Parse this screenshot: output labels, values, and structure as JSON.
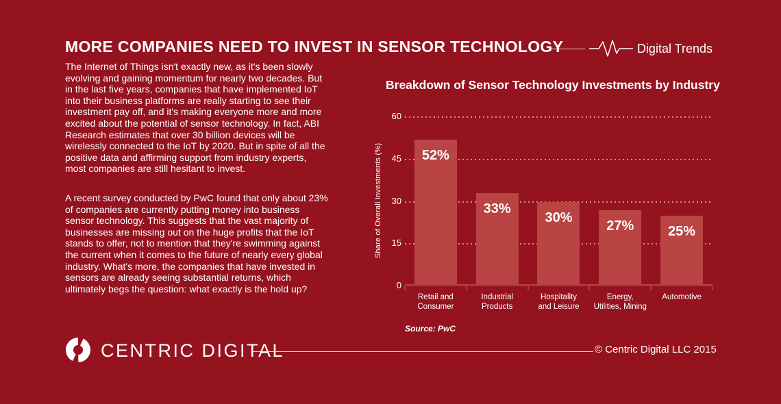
{
  "header": {
    "title": "MORE COMPANIES NEED TO INVEST IN SENSOR TECHNOLOGY",
    "brand_tag": "Digital Trends"
  },
  "article": {
    "paragraphs": [
      "The Internet of Things isn't exactly new, as it's been slowly evolving and gaining momentum for nearly two decades. But in the last five years, companies that have implemented IoT into their business platforms are really starting to see their investment pay off, and it's making everyone more and more excited about the potential of sensor technology. In fact, ABI Research estimates that over 30 billion devices will be wirelessly connected to the IoT by 2020. But in spite of all the positive data and affirming support from industry experts, most companies are still hesitant to invest.",
      "A recent survey conducted by PwC found that only about 23% of companies are currently putting money into business sensor technology. This suggests that the vast majority of businesses are missing out on the huge profits that the IoT stands to offer, not to mention that they're swimming against the current when it comes to the future of nearly every global industry. What's more, the companies that have invested in sensors are already seeing substantial returns, which ultimately begs the question: what exactly is the hold up?"
    ]
  },
  "chart_data": {
    "type": "bar",
    "title": "Breakdown of Sensor Technology Investments by Industry",
    "categories": [
      "Retail and Consumer",
      "Industrial Products",
      "Hospitality and Leisure",
      "Energy, Utilities, Mining",
      "Automotive"
    ],
    "category_label_lines": [
      [
        "Retail and",
        "Consumer"
      ],
      [
        "Industrial",
        "Products"
      ],
      [
        "Hospitality",
        "and Leisure"
      ],
      [
        "Energy,",
        "Utilities, Mining"
      ],
      [
        "Automotive"
      ]
    ],
    "values": [
      52,
      33,
      30,
      27,
      25
    ],
    "value_labels": [
      "52%",
      "33%",
      "30%",
      "27%",
      "25%"
    ],
    "ylabel": "Share of Overall Investments (%)",
    "xlabel": "",
    "yticks": [
      0,
      15,
      30,
      45,
      60
    ],
    "ylim": [
      0,
      60
    ],
    "grid": "horizontal-dotted",
    "legend": "none",
    "source": "Source: PwC",
    "colors": {
      "bar": "#ba4343",
      "axis": "#ad3a40",
      "grid_dot": "rgba(255,255,255,0.55)",
      "text": "#ffffff"
    }
  },
  "footer": {
    "logo_text": "CENTRIC DIGITAL",
    "copyright": "© Centric Digital LLC 2015"
  },
  "theme": {
    "background_center": "#95131f",
    "background_edge": "#740d18",
    "text": "#ffffff"
  }
}
